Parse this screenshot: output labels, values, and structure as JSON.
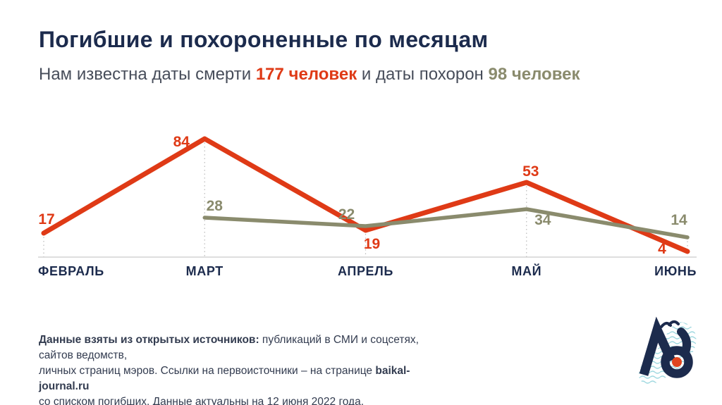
{
  "header": {
    "title": "Погибшие и похороненные по месяцам",
    "subtitle_prefix": "Нам известна даты смерти ",
    "deaths_count": "177 человек",
    "subtitle_middle": " и даты похорон ",
    "burials_count": "98 человек"
  },
  "chart_data": {
    "type": "line",
    "title": "Погибшие и похороненные по месяцам",
    "categories": [
      "ФЕВРАЛЬ",
      "МАРТ",
      "АПРЕЛЬ",
      "МАЙ",
      "ИЮНЬ"
    ],
    "series": [
      {
        "key": "deaths",
        "name": "даты смерти",
        "color": "#df3a16",
        "stroke_width": 7,
        "values": [
          17,
          84,
          19,
          53,
          4
        ]
      },
      {
        "key": "burials",
        "name": "даты похорон",
        "color": "#8a8b6d",
        "stroke_width": 5.5,
        "values": [
          null,
          28,
          22,
          34,
          14
        ]
      }
    ],
    "totals": {
      "deaths": 177,
      "burials": 98
    },
    "ylim": [
      0,
      100
    ],
    "xlabel": "",
    "ylabel": "",
    "legend": "none",
    "gridlines": "dotted vertical guide from top point to baseline at each month",
    "label_offsets": {
      "deaths": [
        [
          4,
          -13
        ],
        [
          -33,
          11
        ],
        [
          9,
          26
        ],
        [
          6,
          -9
        ],
        [
          -36,
          3
        ]
      ],
      "burials": [
        null,
        [
          14,
          -10
        ],
        [
          -27,
          -10
        ],
        [
          23,
          22
        ],
        [
          -12,
          -18
        ]
      ]
    },
    "axis_color": "#c9c9c9",
    "guide_color": "#b9b9b9",
    "month_label_color": "#1c2b4d"
  },
  "footer": {
    "line1_bold": "Данные взяты из открытых источников:",
    "line1_rest": " публикаций в СМИ и соцсетях, сайтов ведомств,",
    "line2_text": "личных страниц мэров. Ссылки на первоисточники – на странице ",
    "line2_site": "baikal-journal.ru",
    "line3_text": "со списком погибших. Данные актуальны на 12 июня 2022 года."
  },
  "colors": {
    "navy": "#1c2b4d",
    "accent_red": "#df3a16",
    "accent_olive": "#8a8b6d",
    "logo_wave_blue": "#9ed8e0",
    "logo_dot_red": "#e0451f"
  }
}
